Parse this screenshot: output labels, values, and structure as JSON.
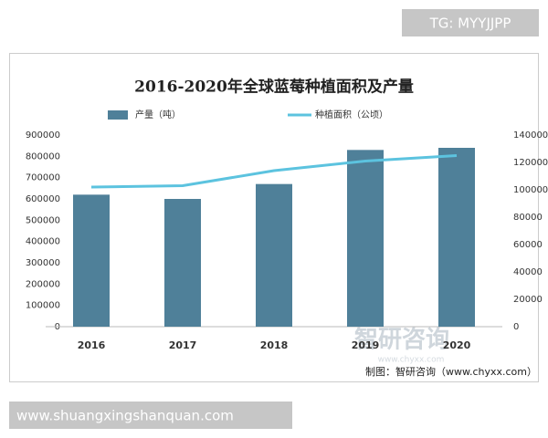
{
  "header": {
    "tag": "TG: MYYJJPP"
  },
  "chart_data": {
    "type": "bar",
    "title": "2016-2020年全球蓝莓种植面积及产量",
    "categories": [
      "2016",
      "2017",
      "2018",
      "2019",
      "2020"
    ],
    "series": [
      {
        "name": "产量（吨）",
        "color": "#4f8099",
        "values": [
          620000,
          600000,
          670000,
          830000,
          840000
        ]
      },
      {
        "name": "种植面积（公顷）",
        "color": "#5cc3df",
        "values": [
          102000,
          103000,
          114000,
          121000,
          125000
        ],
        "axis": "y2"
      }
    ],
    "ylim": [
      0,
      900000
    ],
    "yticks": [
      0,
      100000,
      200000,
      300000,
      400000,
      500000,
      600000,
      700000,
      800000,
      900000
    ],
    "y2lim": [
      0,
      140000
    ],
    "y2ticks": [
      0,
      20000,
      40000,
      60000,
      80000,
      100000,
      120000,
      140000
    ],
    "grid": false,
    "source": "制图：智研咨询（www.chyxx.com）"
  },
  "watermark": {
    "name": "智研咨询",
    "url": "www.chyxx.com"
  },
  "footer": {
    "url": "www.shuangxingshanquan.com"
  }
}
